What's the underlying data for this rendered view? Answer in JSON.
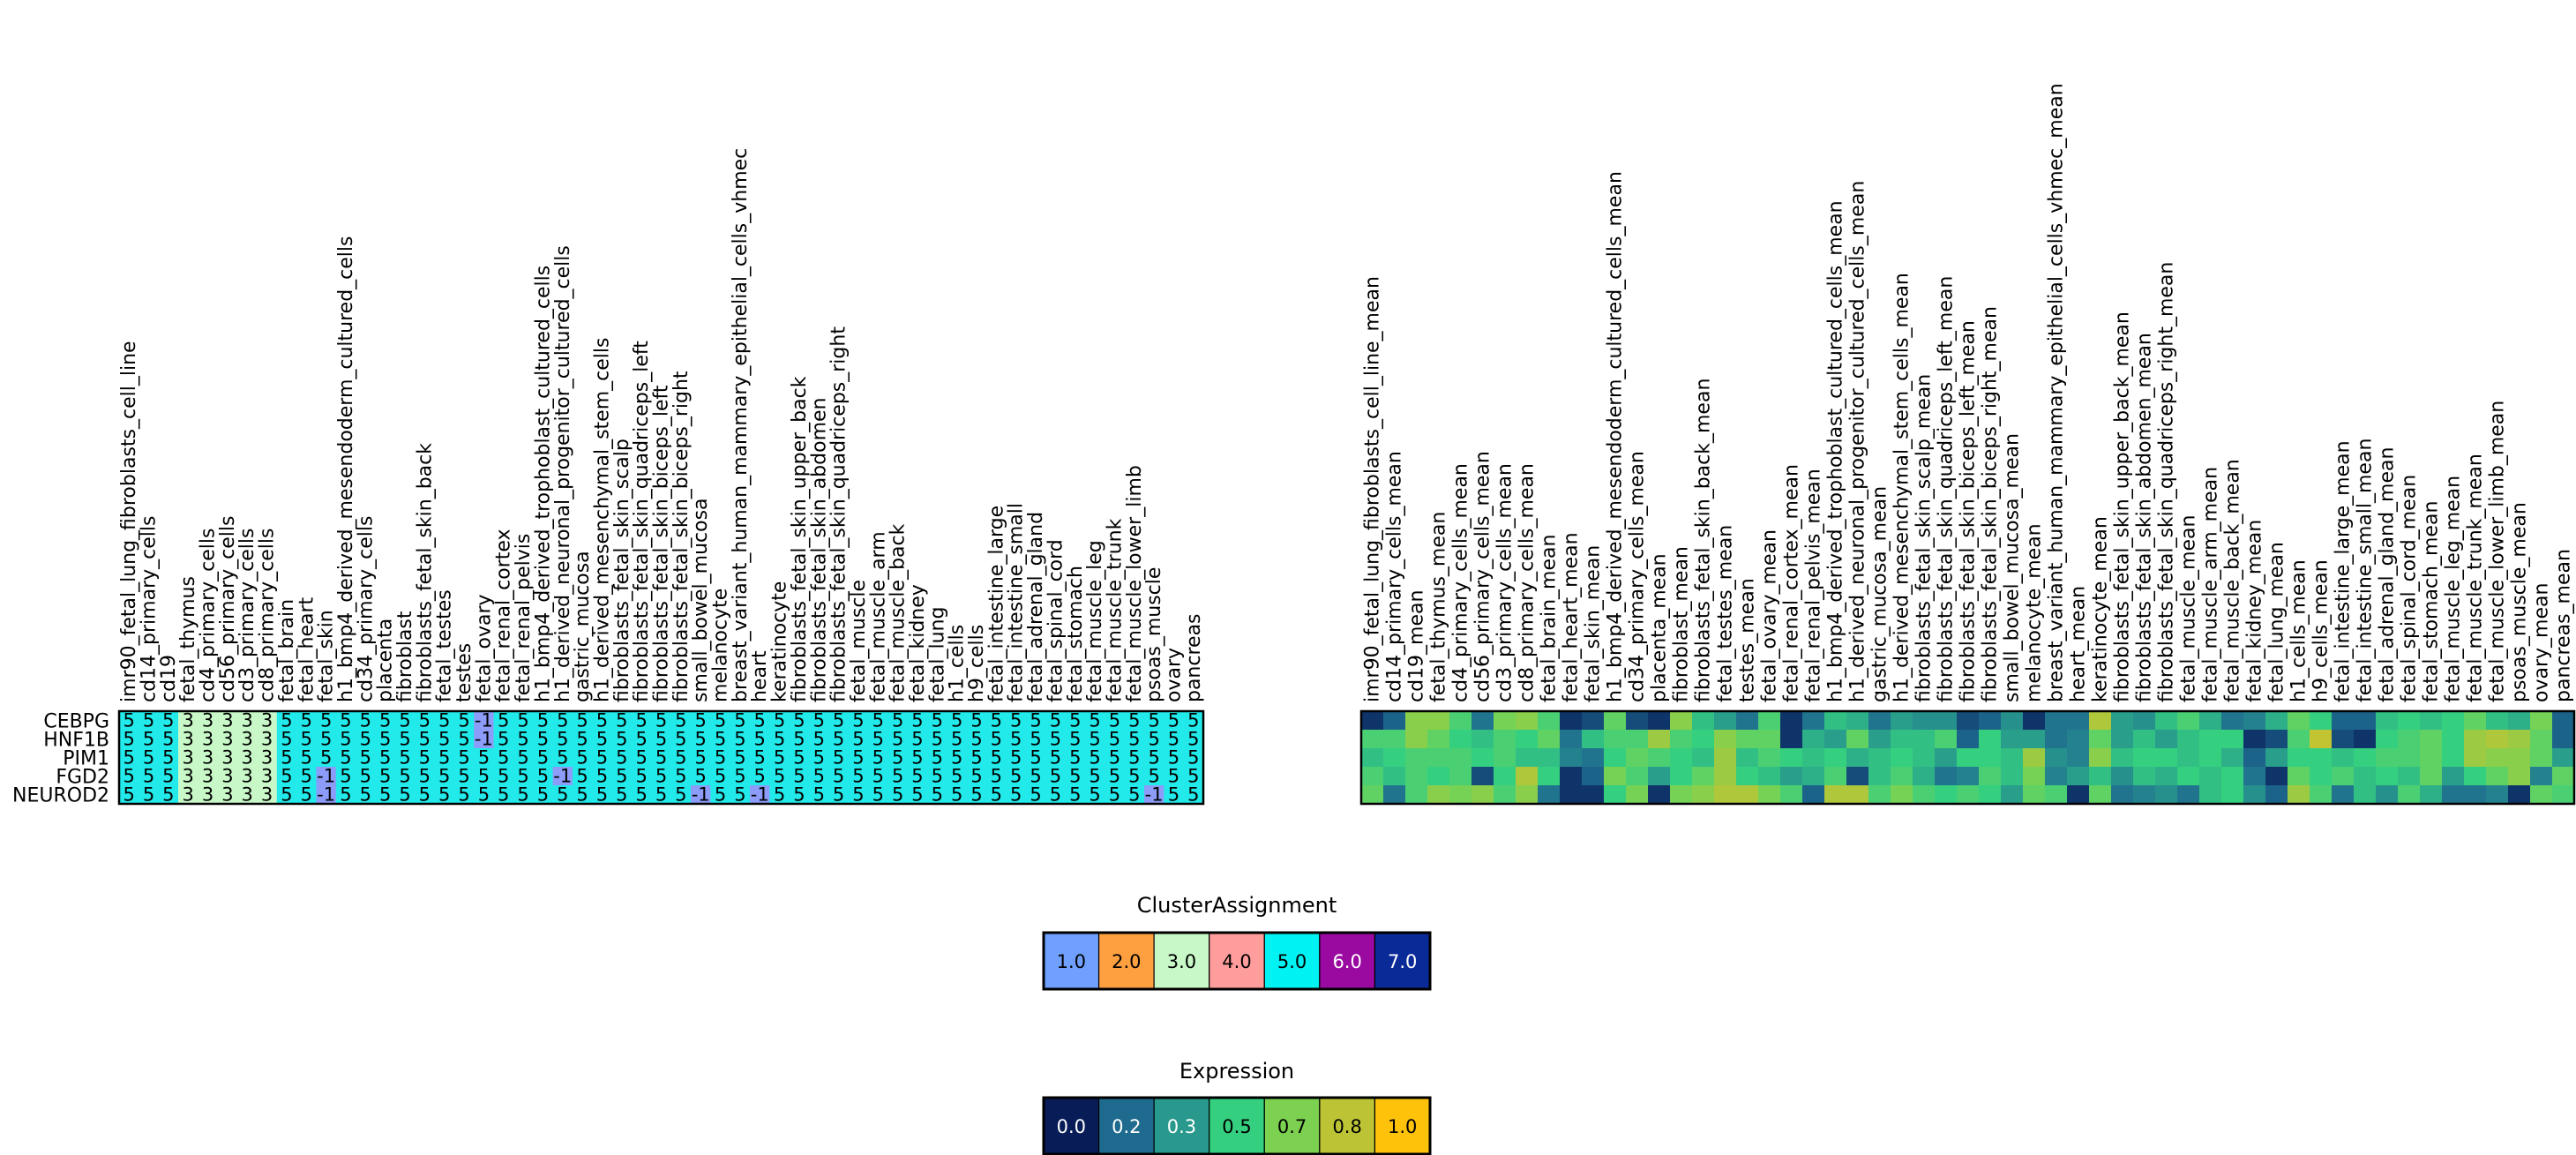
{
  "chart_data": [
    {
      "type": "heatmap",
      "name": "cluster-assignment",
      "rows": [
        "CEBPG",
        "HNF1B",
        "PIM1",
        "FGD2",
        "NEUROD2"
      ],
      "columns": [
        "imr90_fetal_lung_fibroblasts_cell_line",
        "cd14_primary_cells",
        "cd19",
        "fetal_thymus",
        "cd4_primary_cells",
        "cd56_primary_cells",
        "cd3_primary_cells",
        "cd8_primary_cells",
        "fetal_brain",
        "fetal_heart",
        "fetal_skin",
        "h1_bmp4_derived_mesendoderm_cultured_cells",
        "cd34_primary_cells",
        "placenta",
        "fibroblast",
        "fibroblasts_fetal_skin_back",
        "fetal_testes",
        "testes",
        "fetal_ovary",
        "fetal_renal_cortex",
        "fetal_renal_pelvis",
        "h1_bmp4_derived_trophoblast_cultured_cells",
        "h1_derived_neuronal_progenitor_cultured_cells",
        "gastric_mucosa",
        "h1_derived_mesenchymal_stem_cells",
        "fibroblasts_fetal_skin_scalp",
        "fibroblasts_fetal_skin_quadriceps_left",
        "fibroblasts_fetal_skin_biceps_left",
        "fibroblasts_fetal_skin_biceps_right",
        "small_bowel_mucosa",
        "melanocyte",
        "breast_variant_human_mammary_epithelial_cells_vhmec",
        "heart",
        "keratinocyte",
        "fibroblasts_fetal_skin_upper_back",
        "fibroblasts_fetal_skin_abdomen",
        "fibroblasts_fetal_skin_quadriceps_right",
        "fetal_muscle",
        "fetal_muscle_arm",
        "fetal_muscle_back",
        "fetal_kidney",
        "fetal_lung",
        "h1_cells",
        "h9_cells",
        "fetal_intestine_large",
        "fetal_intestine_small",
        "fetal_adrenal_gland",
        "fetal_spinal_cord",
        "fetal_stomach",
        "fetal_muscle_leg",
        "fetal_muscle_trunk",
        "fetal_muscle_lower_limb",
        "psoas_muscle",
        "ovary",
        "pancreas"
      ],
      "values": [
        [
          5,
          5,
          5,
          3,
          3,
          3,
          3,
          3,
          5,
          5,
          5,
          5,
          5,
          5,
          5,
          5,
          5,
          5,
          -1,
          5,
          5,
          5,
          5,
          5,
          5,
          5,
          5,
          5,
          5,
          5,
          5,
          5,
          5,
          5,
          5,
          5,
          5,
          5,
          5,
          5,
          5,
          5,
          5,
          5,
          5,
          5,
          5,
          5,
          5,
          5,
          5,
          5,
          5,
          5,
          5
        ],
        [
          5,
          5,
          5,
          3,
          3,
          3,
          3,
          3,
          5,
          5,
          5,
          5,
          5,
          5,
          5,
          5,
          5,
          5,
          -1,
          5,
          5,
          5,
          5,
          5,
          5,
          5,
          5,
          5,
          5,
          5,
          5,
          5,
          5,
          5,
          5,
          5,
          5,
          5,
          5,
          5,
          5,
          5,
          5,
          5,
          5,
          5,
          5,
          5,
          5,
          5,
          5,
          5,
          5,
          5,
          5
        ],
        [
          5,
          5,
          5,
          3,
          3,
          3,
          3,
          3,
          5,
          5,
          5,
          5,
          5,
          5,
          5,
          5,
          5,
          5,
          5,
          5,
          5,
          5,
          5,
          5,
          5,
          5,
          5,
          5,
          5,
          5,
          5,
          5,
          5,
          5,
          5,
          5,
          5,
          5,
          5,
          5,
          5,
          5,
          5,
          5,
          5,
          5,
          5,
          5,
          5,
          5,
          5,
          5,
          5,
          5,
          5
        ],
        [
          5,
          5,
          5,
          3,
          3,
          3,
          3,
          3,
          5,
          5,
          -1,
          5,
          5,
          5,
          5,
          5,
          5,
          5,
          5,
          5,
          5,
          5,
          -1,
          5,
          5,
          5,
          5,
          5,
          5,
          5,
          5,
          5,
          5,
          5,
          5,
          5,
          5,
          5,
          5,
          5,
          5,
          5,
          5,
          5,
          5,
          5,
          5,
          5,
          5,
          5,
          5,
          5,
          5,
          5,
          5
        ],
        [
          5,
          5,
          5,
          3,
          3,
          3,
          3,
          3,
          5,
          5,
          -1,
          5,
          5,
          5,
          5,
          5,
          5,
          5,
          5,
          5,
          5,
          5,
          5,
          5,
          5,
          5,
          5,
          5,
          5,
          -1,
          5,
          5,
          -1,
          5,
          5,
          5,
          5,
          5,
          5,
          5,
          5,
          5,
          5,
          5,
          5,
          5,
          5,
          5,
          5,
          5,
          5,
          5,
          -1,
          5,
          5
        ]
      ],
      "cell_labels": "shown"
    },
    {
      "type": "heatmap",
      "name": "expression",
      "rows": [
        "CEBPG",
        "HNF1B",
        "PIM1",
        "FGD2",
        "NEUROD2"
      ],
      "columns": [
        "imr90_fetal_lung_fibroblasts_cell_line_mean",
        "cd14_primary_cells_mean",
        "cd19_mean",
        "fetal_thymus_mean",
        "cd4_primary_cells_mean",
        "cd56_primary_cells_mean",
        "cd3_primary_cells_mean",
        "cd8_primary_cells_mean",
        "fetal_brain_mean",
        "fetal_heart_mean",
        "fetal_skin_mean",
        "h1_bmp4_derived_mesendoderm_cultured_cells_mean",
        "cd34_primary_cells_mean",
        "placenta_mean",
        "fibroblast_mean",
        "fibroblasts_fetal_skin_back_mean",
        "fetal_testes_mean",
        "testes_mean",
        "fetal_ovary_mean",
        "fetal_renal_cortex_mean",
        "fetal_renal_pelvis_mean",
        "h1_bmp4_derived_trophoblast_cultured_cells_mean",
        "h1_derived_neuronal_progenitor_cultured_cells_mean",
        "gastric_mucosa_mean",
        "h1_derived_mesenchymal_stem_cells_mean",
        "fibroblasts_fetal_skin_scalp_mean",
        "fibroblasts_fetal_skin_quadriceps_left_mean",
        "fibroblasts_fetal_skin_biceps_left_mean",
        "fibroblasts_fetal_skin_biceps_right_mean",
        "small_bowel_mucosa_mean",
        "melanocyte_mean",
        "breast_variant_human_mammary_epithelial_cells_vhmec_mean",
        "heart_mean",
        "keratinocyte_mean",
        "fibroblasts_fetal_skin_upper_back_mean",
        "fibroblasts_fetal_skin_abdomen_mean",
        "fibroblasts_fetal_skin_quadriceps_right_mean",
        "fetal_muscle_mean",
        "fetal_muscle_arm_mean",
        "fetal_muscle_back_mean",
        "fetal_kidney_mean",
        "fetal_lung_mean",
        "h1_cells_mean",
        "h9_cells_mean",
        "fetal_intestine_large_mean",
        "fetal_intestine_small_mean",
        "fetal_adrenal_gland_mean",
        "fetal_spinal_cord_mean",
        "fetal_stomach_mean",
        "fetal_muscle_leg_mean",
        "fetal_muscle_trunk_mean",
        "fetal_muscle_lower_limb_mean",
        "psoas_muscle_mean",
        "ovary_mean",
        "pancreas_mean"
      ],
      "values": [
        [
          0.05,
          0.15,
          0.7,
          0.7,
          0.55,
          0.2,
          0.65,
          0.7,
          0.55,
          0.05,
          0.1,
          0.6,
          0.1,
          0.05,
          0.7,
          0.45,
          0.35,
          0.2,
          0.55,
          0.05,
          0.2,
          0.45,
          0.4,
          0.2,
          0.35,
          0.3,
          0.3,
          0.1,
          0.15,
          0.3,
          0.05,
          0.2,
          0.2,
          0.8,
          0.35,
          0.3,
          0.45,
          0.55,
          0.4,
          0.2,
          0.25,
          0.4,
          0.6,
          0.5,
          0.15,
          0.15,
          0.45,
          0.5,
          0.45,
          0.5,
          0.6,
          0.45,
          0.4,
          0.65,
          0.15
        ],
        [
          0.55,
          0.55,
          0.7,
          0.6,
          0.5,
          0.45,
          0.55,
          0.5,
          0.6,
          0.2,
          0.45,
          0.55,
          0.55,
          0.75,
          0.55,
          0.5,
          0.7,
          0.6,
          0.6,
          0.05,
          0.4,
          0.35,
          0.6,
          0.35,
          0.45,
          0.45,
          0.55,
          0.15,
          0.5,
          0.35,
          0.35,
          0.2,
          0.25,
          0.6,
          0.35,
          0.45,
          0.35,
          0.45,
          0.5,
          0.5,
          0.05,
          0.1,
          0.55,
          0.85,
          0.1,
          0.05,
          0.5,
          0.55,
          0.6,
          0.5,
          0.75,
          0.8,
          0.75,
          0.6,
          0.15
        ],
        [
          0.45,
          0.5,
          0.55,
          0.55,
          0.55,
          0.5,
          0.55,
          0.45,
          0.45,
          0.25,
          0.2,
          0.5,
          0.6,
          0.55,
          0.5,
          0.45,
          0.75,
          0.45,
          0.55,
          0.5,
          0.45,
          0.5,
          0.4,
          0.45,
          0.5,
          0.45,
          0.35,
          0.5,
          0.5,
          0.45,
          0.75,
          0.3,
          0.25,
          0.7,
          0.45,
          0.5,
          0.5,
          0.45,
          0.5,
          0.4,
          0.15,
          0.35,
          0.5,
          0.5,
          0.45,
          0.5,
          0.55,
          0.55,
          0.6,
          0.5,
          0.75,
          0.7,
          0.7,
          0.6,
          0.35
        ],
        [
          0.55,
          0.45,
          0.55,
          0.5,
          0.55,
          0.1,
          0.5,
          0.8,
          0.5,
          0.05,
          0.15,
          0.65,
          0.55,
          0.35,
          0.5,
          0.6,
          0.75,
          0.5,
          0.45,
          0.35,
          0.4,
          0.55,
          0.1,
          0.45,
          0.55,
          0.4,
          0.2,
          0.25,
          0.55,
          0.45,
          0.65,
          0.25,
          0.35,
          0.45,
          0.3,
          0.45,
          0.4,
          0.5,
          0.45,
          0.5,
          0.2,
          0.05,
          0.6,
          0.5,
          0.55,
          0.45,
          0.5,
          0.45,
          0.6,
          0.35,
          0.5,
          0.6,
          0.7,
          0.25,
          0.6
        ],
        [
          0.6,
          0.2,
          0.55,
          0.7,
          0.65,
          0.7,
          0.55,
          0.7,
          0.2,
          0.05,
          0.05,
          0.5,
          0.65,
          0.05,
          0.65,
          0.7,
          0.8,
          0.8,
          0.65,
          0.55,
          0.15,
          0.8,
          0.8,
          0.55,
          0.65,
          0.55,
          0.5,
          0.55,
          0.5,
          0.35,
          0.6,
          0.55,
          0.05,
          0.6,
          0.2,
          0.25,
          0.3,
          0.2,
          0.45,
          0.5,
          0.3,
          0.15,
          0.75,
          0.55,
          0.2,
          0.45,
          0.3,
          0.55,
          0.4,
          0.2,
          0.2,
          0.25,
          0.05,
          0.6,
          0.55
        ]
      ]
    }
  ],
  "legends": {
    "cluster": {
      "title": "ClusterAssignment",
      "items": [
        {
          "label": "1.0",
          "color": "#6fa0ff",
          "text_color": "#000000"
        },
        {
          "label": "2.0",
          "color": "#ffa040",
          "text_color": "#000000"
        },
        {
          "label": "3.0",
          "color": "#c8f8c8",
          "text_color": "#000000"
        },
        {
          "label": "4.0",
          "color": "#ff9c9c",
          "text_color": "#000000"
        },
        {
          "label": "5.0",
          "color": "#00f2f2",
          "text_color": "#000000"
        },
        {
          "label": "6.0",
          "color": "#9a0aa0",
          "text_color": "#ffffff"
        },
        {
          "label": "7.0",
          "color": "#0a2a98",
          "text_color": "#ffffff"
        }
      ]
    },
    "expression": {
      "title": "Expression",
      "items": [
        {
          "label": "0.0",
          "color": "#081d58",
          "text_color": "#ffffff"
        },
        {
          "label": "0.2",
          "color": "#1e6b8f",
          "text_color": "#ffffff"
        },
        {
          "label": "0.3",
          "color": "#28998c",
          "text_color": "#ffffff"
        },
        {
          "label": "0.5",
          "color": "#35cf80",
          "text_color": "#000000"
        },
        {
          "label": "0.7",
          "color": "#7cd250",
          "text_color": "#000000"
        },
        {
          "label": "0.8",
          "color": "#bcc436",
          "text_color": "#000000"
        },
        {
          "label": "1.0",
          "color": "#ffc20a",
          "text_color": "#000000"
        }
      ]
    }
  },
  "colors": {
    "cluster_neg1": "#8c9cf8",
    "cluster_3": "#c8f8c8",
    "cluster_5": "#22eaea",
    "expression_scale": [
      "#081d58",
      "#1e6b8f",
      "#28998c",
      "#35cf80",
      "#7cd250",
      "#bcc436",
      "#ffc20a"
    ]
  }
}
